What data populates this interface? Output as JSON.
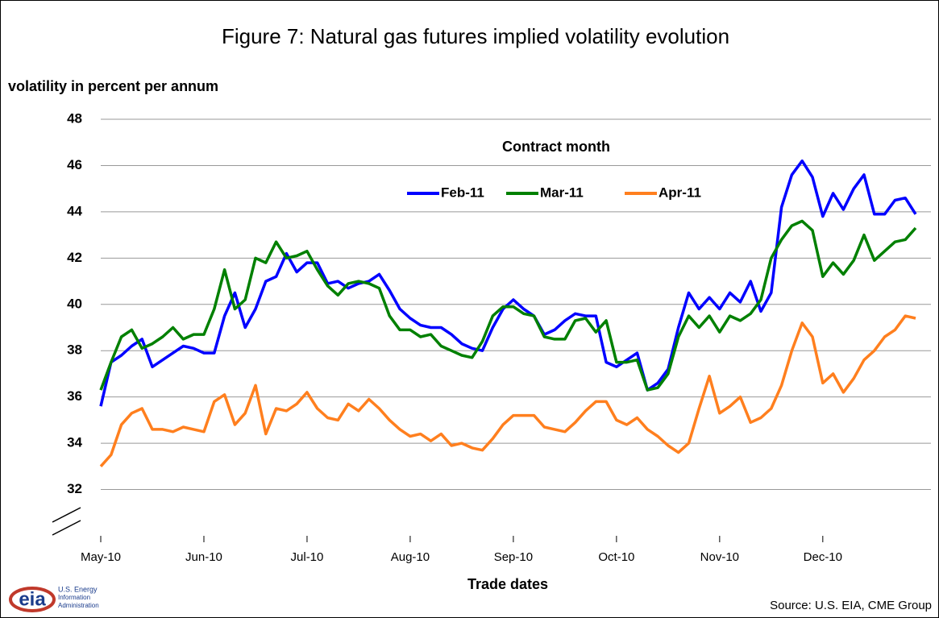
{
  "chart_data": {
    "type": "line",
    "title": "Figure 7: Natural gas futures implied volatility evolution",
    "y_label": "volatility in percent per annum",
    "x_label": "Trade dates",
    "legend_title": "Contract month",
    "source": "Source:  U.S. EIA, CME Group",
    "logo": {
      "mark": "eia",
      "lines": [
        "U.S. Energy",
        "Information",
        "Administration"
      ]
    },
    "categories": [
      "May-10",
      null,
      null,
      null,
      null,
      null,
      null,
      null,
      null,
      null,
      "Jun-10",
      null,
      null,
      null,
      null,
      null,
      null,
      null,
      null,
      null,
      "Jul-10",
      null,
      null,
      null,
      null,
      null,
      null,
      null,
      null,
      null,
      "Aug-10",
      null,
      null,
      null,
      null,
      null,
      null,
      null,
      null,
      null,
      "Sep-10",
      null,
      null,
      null,
      null,
      null,
      null,
      null,
      null,
      null,
      "Oct-10",
      null,
      null,
      null,
      null,
      null,
      null,
      null,
      null,
      null,
      "Nov-10",
      null,
      null,
      null,
      null,
      null,
      null,
      null,
      null,
      null,
      "Dec-10",
      null,
      null,
      null,
      null,
      null,
      null,
      null,
      null,
      null
    ],
    "series": [
      {
        "name": "Feb-11",
        "color": "#0000ff",
        "values": [
          35.6,
          37.5,
          37.8,
          38.2,
          38.5,
          37.3,
          37.6,
          37.9,
          38.2,
          38.1,
          37.9,
          37.9,
          39.5,
          40.5,
          39.0,
          39.8,
          41.0,
          41.2,
          42.2,
          41.4,
          41.8,
          41.8,
          40.9,
          41.0,
          40.7,
          40.9,
          41.0,
          41.3,
          40.6,
          39.8,
          39.4,
          39.1,
          39.0,
          39.0,
          38.7,
          38.3,
          38.1,
          38.0,
          39.0,
          39.8,
          40.2,
          39.8,
          39.5,
          38.7,
          38.9,
          39.3,
          39.6,
          39.5,
          39.5,
          37.5,
          37.3,
          37.6,
          37.9,
          36.3,
          36.6,
          37.2,
          39.0,
          40.5,
          39.8,
          40.3,
          39.8,
          40.5,
          40.1,
          41.0,
          39.7,
          40.5,
          44.2,
          45.6,
          46.2,
          45.5,
          43.8,
          44.8,
          44.1,
          45.0,
          45.6,
          43.9,
          43.9,
          44.5,
          44.6,
          43.9
        ]
      },
      {
        "name": "Mar-11",
        "color": "#008000",
        "values": [
          36.3,
          37.5,
          38.6,
          38.9,
          38.1,
          38.3,
          38.6,
          39.0,
          38.5,
          38.7,
          38.7,
          39.8,
          41.5,
          39.8,
          40.2,
          42.0,
          41.8,
          42.7,
          42.0,
          42.1,
          42.3,
          41.5,
          40.8,
          40.4,
          40.9,
          41.0,
          40.9,
          40.7,
          39.5,
          38.9,
          38.9,
          38.6,
          38.7,
          38.2,
          38.0,
          37.8,
          37.7,
          38.4,
          39.5,
          39.9,
          39.9,
          39.6,
          39.5,
          38.6,
          38.5,
          38.5,
          39.3,
          39.4,
          38.8,
          39.3,
          37.5,
          37.5,
          37.6,
          36.3,
          36.4,
          37.0,
          38.6,
          39.5,
          39.0,
          39.5,
          38.8,
          39.5,
          39.3,
          39.6,
          40.2,
          42.0,
          42.8,
          43.4,
          43.6,
          43.2,
          41.2,
          41.8,
          41.3,
          41.9,
          43.0,
          41.9,
          42.3,
          42.7,
          42.8,
          43.3
        ]
      },
      {
        "name": "Apr-11",
        "color": "#ff7f1e",
        "values": [
          33.0,
          33.5,
          34.8,
          35.3,
          35.5,
          34.6,
          34.6,
          34.5,
          34.7,
          34.6,
          34.5,
          35.8,
          36.1,
          34.8,
          35.3,
          36.5,
          34.4,
          35.5,
          35.4,
          35.7,
          36.2,
          35.5,
          35.1,
          35.0,
          35.7,
          35.4,
          35.9,
          35.5,
          35.0,
          34.6,
          34.3,
          34.4,
          34.1,
          34.4,
          33.9,
          34.0,
          33.8,
          33.7,
          34.2,
          34.8,
          35.2,
          35.2,
          35.2,
          34.7,
          34.6,
          34.5,
          34.9,
          35.4,
          35.8,
          35.8,
          35.0,
          34.8,
          35.1,
          34.6,
          34.3,
          33.9,
          33.6,
          34.0,
          35.5,
          36.9,
          35.3,
          35.6,
          36.0,
          34.9,
          35.1,
          35.5,
          36.5,
          38.0,
          39.2,
          38.6,
          36.6,
          37.0,
          36.2,
          36.8,
          37.6,
          38.0,
          38.6,
          38.9,
          39.5,
          39.4
        ]
      }
    ],
    "ylim": [
      30,
      48
    ],
    "yticks": [
      32,
      34,
      36,
      38,
      40,
      42,
      44,
      46,
      48
    ],
    "grid": true
  }
}
